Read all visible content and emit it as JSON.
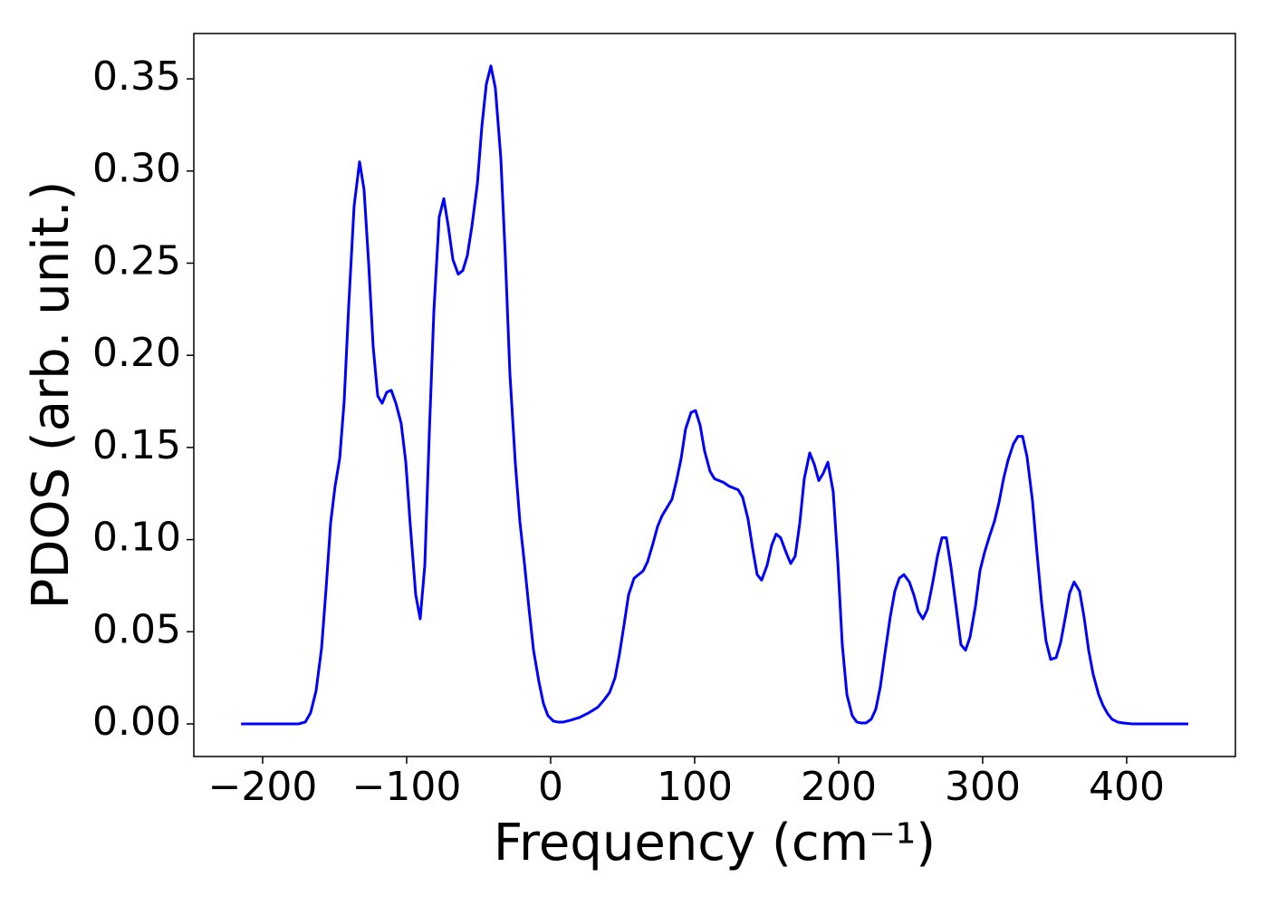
{
  "chart_data": {
    "type": "line",
    "x_label": "Frequency (cm⁻¹)",
    "y_label": "PDOS (arb. unit.)",
    "xlim": [
      -247.8,
      475.5
    ],
    "ylim": [
      -0.0177,
      0.3746
    ],
    "xticks": [
      {
        "value": -200,
        "label": "−200"
      },
      {
        "value": -100,
        "label": "−100"
      },
      0,
      100,
      200,
      300,
      400
    ],
    "yticks": [
      {
        "value": 0,
        "label": "0.00"
      },
      {
        "value": 0.05,
        "label": "0.05"
      },
      {
        "value": 0.1,
        "label": "0.10"
      },
      {
        "value": 0.15,
        "label": "0.15"
      },
      {
        "value": 0.2,
        "label": "0.20"
      },
      {
        "value": 0.25,
        "label": "0.25"
      },
      {
        "value": 0.3,
        "label": "0.30"
      },
      {
        "value": 0.35,
        "label": "0.35"
      }
    ],
    "grid": false,
    "x": [
      -215,
      -175,
      -170.4,
      -166.7,
      -162.9,
      -159.1,
      -156,
      -152.8,
      -149.7,
      -146.5,
      -143.4,
      -140.3,
      -136.5,
      -132.7,
      -129.6,
      -126.4,
      -123.3,
      -120.1,
      -117,
      -113.8,
      -110.7,
      -107.5,
      -103.8,
      -100.6,
      -97.5,
      -93.7,
      -90.6,
      -87.4,
      -84.3,
      -81.1,
      -77.4,
      -74.2,
      -71.1,
      -67.9,
      -64.2,
      -61,
      -57.9,
      -54.7,
      -50.9,
      -47.8,
      -44.7,
      -41.5,
      -38.4,
      -34.6,
      -31.4,
      -28.3,
      -24.5,
      -21.4,
      -18.2,
      -15.1,
      -11.9,
      -8.2,
      -5,
      -1.9,
      1.9,
      5,
      8.8,
      13.8,
      20.1,
      26.4,
      32.7,
      37.1,
      40.9,
      44.7,
      47.8,
      51,
      54.1,
      57.9,
      61,
      64.2,
      67.3,
      71.1,
      74.2,
      77.4,
      80.5,
      84.3,
      87.4,
      90.6,
      93.7,
      97.5,
      100.6,
      103.8,
      106.9,
      110.7,
      113.8,
      117,
      120.1,
      123.9,
      127,
      130.2,
      133.3,
      137.1,
      140.3,
      143.4,
      146.5,
      150.3,
      153.5,
      156.6,
      159.7,
      163.5,
      166.7,
      169.8,
      173,
      176.1,
      179.9,
      183,
      186.2,
      189.3,
      192.5,
      196.2,
      199.4,
      202.5,
      205.7,
      209.4,
      212.6,
      215.7,
      218.9,
      222.6,
      225.8,
      228.9,
      232.1,
      235.8,
      239,
      242.1,
      245.3,
      249.1,
      252.2,
      255.3,
      258.5,
      261.6,
      265.4,
      268.6,
      271.7,
      274.8,
      278,
      281.8,
      284.9,
      288.1,
      291.2,
      295,
      298.1,
      301.3,
      304.4,
      308.2,
      311.3,
      314.5,
      317.6,
      321.4,
      324.5,
      327.7,
      330.8,
      334.6,
      337.7,
      340.9,
      344,
      347.2,
      351,
      354.1,
      357.2,
      360.4,
      363.5,
      367.3,
      370.4,
      373.6,
      376.7,
      380.5,
      383.6,
      386.8,
      389.9,
      393.7,
      397.5,
      403.8,
      442.8
    ],
    "series": [
      {
        "color": "#0000ff",
        "values": [
          0,
          0,
          0.001,
          0.006,
          0.018,
          0.041,
          0.073,
          0.109,
          0.129,
          0.144,
          0.175,
          0.226,
          0.281,
          0.305,
          0.29,
          0.25,
          0.205,
          0.178,
          0.174,
          0.18,
          0.181,
          0.174,
          0.163,
          0.142,
          0.108,
          0.07,
          0.057,
          0.086,
          0.157,
          0.224,
          0.275,
          0.285,
          0.27,
          0.252,
          0.244,
          0.246,
          0.254,
          0.27,
          0.293,
          0.324,
          0.347,
          0.357,
          0.345,
          0.307,
          0.252,
          0.19,
          0.141,
          0.11,
          0.087,
          0.063,
          0.04,
          0.023,
          0.011,
          0.0045,
          0.0015,
          0.001,
          0.001,
          0.002,
          0.0035,
          0.006,
          0.009,
          0.013,
          0.017,
          0.025,
          0.038,
          0.054,
          0.07,
          0.079,
          0.081,
          0.083,
          0.088,
          0.098,
          0.107,
          0.113,
          0.117,
          0.122,
          0.132,
          0.144,
          0.16,
          0.169,
          0.17,
          0.162,
          0.148,
          0.137,
          0.133,
          0.132,
          0.131,
          0.129,
          0.128,
          0.127,
          0.123,
          0.111,
          0.095,
          0.081,
          0.078,
          0.086,
          0.097,
          0.103,
          0.101,
          0.093,
          0.087,
          0.091,
          0.109,
          0.133,
          0.147,
          0.141,
          0.132,
          0.136,
          0.142,
          0.126,
          0.088,
          0.043,
          0.016,
          0.0045,
          0.001,
          0.0005,
          0.0005,
          0.0025,
          0.008,
          0.02,
          0.038,
          0.058,
          0.072,
          0.079,
          0.081,
          0.077,
          0.07,
          0.061,
          0.057,
          0.062,
          0.077,
          0.091,
          0.101,
          0.101,
          0.085,
          0.062,
          0.043,
          0.04,
          0.047,
          0.064,
          0.083,
          0.093,
          0.101,
          0.11,
          0.12,
          0.133,
          0.143,
          0.152,
          0.156,
          0.156,
          0.145,
          0.121,
          0.093,
          0.066,
          0.045,
          0.035,
          0.036,
          0.044,
          0.057,
          0.071,
          0.077,
          0.072,
          0.058,
          0.04,
          0.027,
          0.016,
          0.01,
          0.0055,
          0.0025,
          0.001,
          0.0005,
          0,
          0
        ]
      }
    ]
  }
}
